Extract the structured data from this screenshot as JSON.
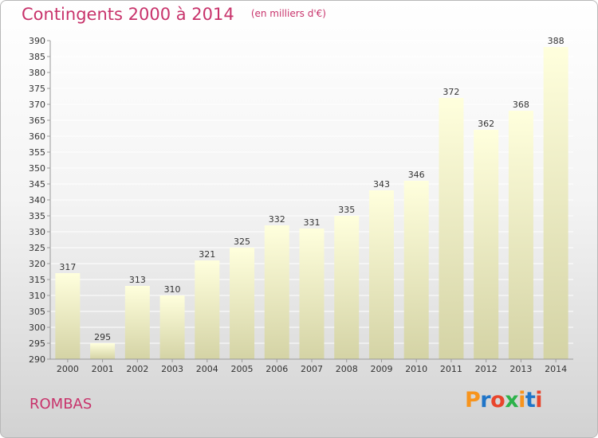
{
  "header": {
    "title": "Contingents 2000 à 2014",
    "subtitle": "(en milliers d'€)"
  },
  "footer": {
    "place": "ROMBAS",
    "logo": {
      "text": "Proxiti",
      "colors": [
        "#f7941d",
        "#1f75c8",
        "#e8452c",
        "#2db24a",
        "#f7941d",
        "#1f75c8",
        "#e8452c"
      ]
    }
  },
  "colors": {
    "title": "#c8336b",
    "bar_top": "#ffffdd",
    "bar_bottom": "#d4d3a5",
    "axis_text": "#333333",
    "grid": "#ffffff"
  },
  "chart_data": {
    "type": "bar",
    "categories": [
      "2000",
      "2001",
      "2002",
      "2003",
      "2004",
      "2005",
      "2006",
      "2007",
      "2008",
      "2009",
      "2010",
      "2011",
      "2012",
      "2013",
      "2014"
    ],
    "values": [
      317,
      295,
      313,
      310,
      321,
      325,
      332,
      331,
      335,
      343,
      346,
      372,
      362,
      368,
      388
    ],
    "ylim": [
      290,
      390
    ],
    "ytick_step": 5,
    "yticks": [
      "290",
      "295",
      "300",
      "305",
      "310",
      "315",
      "320",
      "325",
      "330",
      "335",
      "340",
      "345",
      "350",
      "355",
      "360",
      "365",
      "370",
      "375",
      "380",
      "385",
      "390"
    ],
    "grid": true,
    "data_labels": true
  }
}
